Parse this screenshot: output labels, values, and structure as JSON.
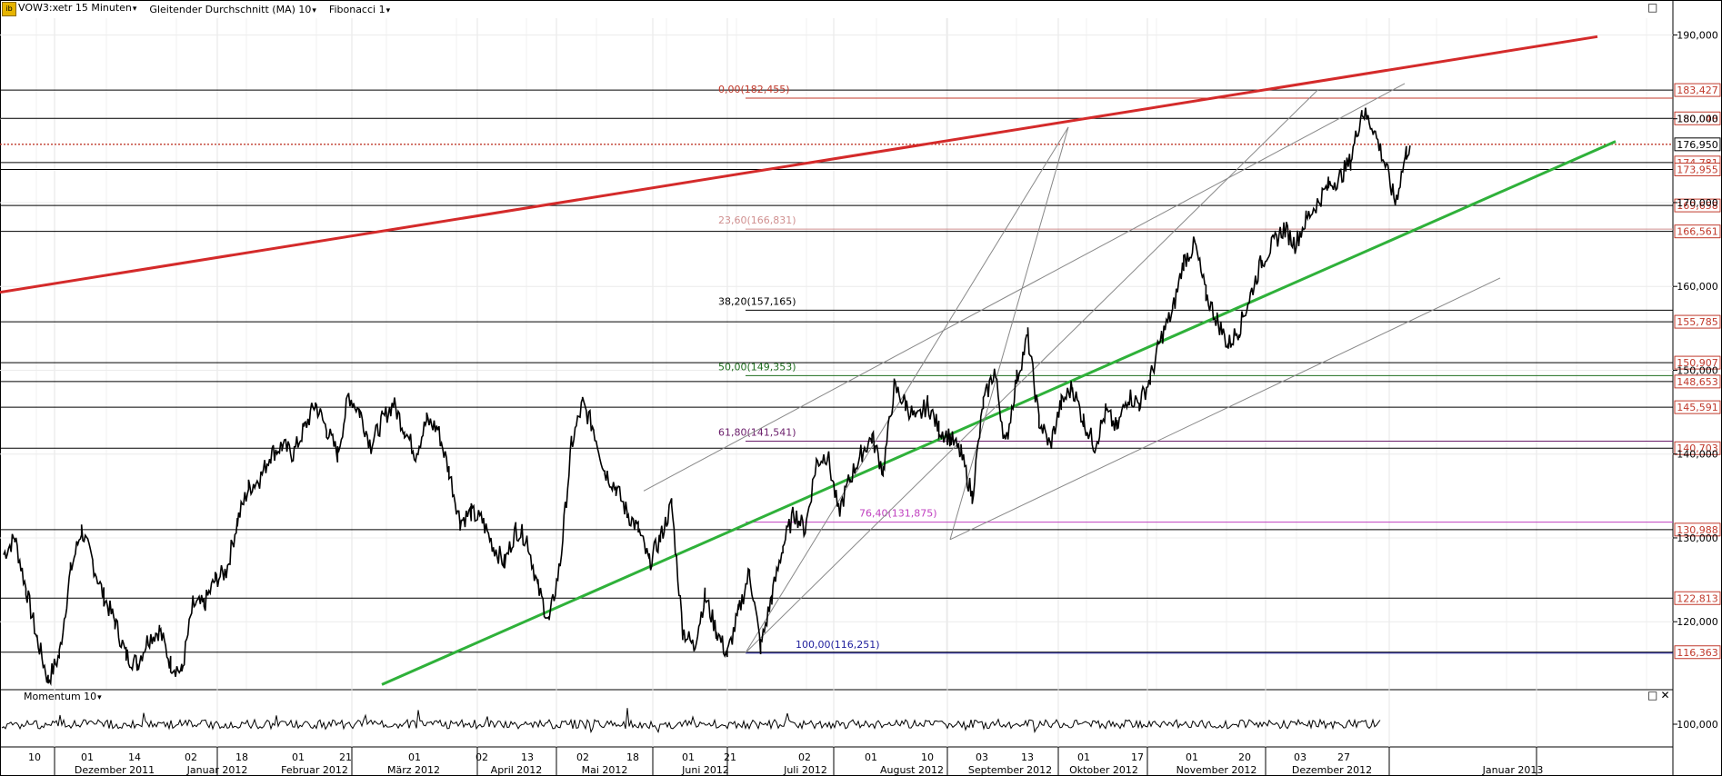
{
  "toolbar": {
    "symbol": "VOW3:xetr 15 Minuten",
    "indicator": "Gleitender Durchschnitt (MA) 10",
    "fibonacci": "Fibonacci 1"
  },
  "momentum_label": "Momentum 10",
  "colors": {
    "resistance": "#d42a2a",
    "support": "#2fb13a",
    "price": "#000000",
    "price_label_text": "#c0392b",
    "fib_0": "#c0392b",
    "fib_236": "#d09090",
    "fib_382": "#000000",
    "fib_50": "#1e6e1e",
    "fib_618": "#6b1e6b",
    "fib_764": "#c040c0",
    "fib_100": "#1e1e9c"
  },
  "chart_data": {
    "type": "line",
    "y_axis": {
      "ylim": [
        112,
        192
      ],
      "ticks": [
        "190,000",
        "180,000",
        "170,000",
        "160,000",
        "150,000",
        "140,000",
        "130,000",
        "120,000"
      ]
    },
    "momentum_axis": {
      "ticks": [
        "100,000"
      ]
    },
    "current_price": "176,950",
    "price_levels": [
      "183,427",
      "180,048",
      "174,781",
      "173,955",
      "169,658",
      "166,561",
      "155,785",
      "150,907",
      "148,653",
      "145,591",
      "140,703",
      "130,988",
      "122,813",
      "116,363"
    ],
    "fibonacci": [
      {
        "label": "0,00(182,455)",
        "value": 182.455
      },
      {
        "label": "23,60(166,831)",
        "value": 166.831
      },
      {
        "label": "38,20(157,165)",
        "value": 157.165
      },
      {
        "label": "50,00(149,353)",
        "value": 149.353
      },
      {
        "label": "61,80(141,541)",
        "value": 141.541
      },
      {
        "label": "76,40(131,875)",
        "value": 131.875
      },
      {
        "label": "100,00(116,251)",
        "value": 116.251
      }
    ],
    "x_days": [
      "10",
      "01",
      "14",
      "02",
      "18",
      "01",
      "21",
      "01",
      "02",
      "13",
      "02",
      "18",
      "01",
      "21",
      "02",
      "01",
      "10",
      "03",
      "13",
      "01",
      "17",
      "01",
      "20",
      "03",
      "27"
    ],
    "x_months": [
      "Dezember 2011",
      "Januar 2012",
      "Februar 2012",
      "März 2012",
      "April 2012",
      "Mai 2012",
      "Juni 2012",
      "Juli 2012",
      "August 2012",
      "September 2012",
      "Oktober 2012",
      "November 2012",
      "Dezember 2012",
      "Januar 2013"
    ],
    "series": [
      {
        "values": [
          [
            0,
            128
          ],
          [
            3,
            130
          ],
          [
            6,
            124
          ],
          [
            9,
            118
          ],
          [
            12,
            113
          ],
          [
            15,
            116
          ],
          [
            18,
            126
          ],
          [
            21,
            131
          ],
          [
            24,
            127
          ],
          [
            27,
            123
          ],
          [
            30,
            120
          ],
          [
            33,
            116
          ],
          [
            36,
            115
          ],
          [
            39,
            118
          ],
          [
            42,
            119
          ],
          [
            45,
            115
          ],
          [
            48,
            114
          ],
          [
            51,
            122
          ],
          [
            54,
            122
          ],
          [
            57,
            125
          ],
          [
            60,
            126
          ],
          [
            63,
            132
          ],
          [
            66,
            136
          ],
          [
            69,
            137
          ],
          [
            72,
            140
          ],
          [
            75,
            141
          ],
          [
            78,
            140
          ],
          [
            81,
            143
          ],
          [
            84,
            146
          ],
          [
            87,
            143
          ],
          [
            90,
            140
          ],
          [
            93,
            147
          ],
          [
            96,
            145
          ],
          [
            99,
            141
          ],
          [
            102,
            144
          ],
          [
            105,
            146
          ],
          [
            108,
            143
          ],
          [
            111,
            140
          ],
          [
            114,
            144
          ],
          [
            117,
            143
          ],
          [
            120,
            138
          ],
          [
            123,
            132
          ],
          [
            126,
            133
          ],
          [
            129,
            132
          ],
          [
            132,
            129
          ],
          [
            135,
            127
          ],
          [
            138,
            131
          ],
          [
            141,
            130
          ],
          [
            144,
            124
          ],
          [
            147,
            120
          ],
          [
            150,
            127
          ],
          [
            153,
            141
          ],
          [
            156,
            146
          ],
          [
            159,
            143
          ],
          [
            162,
            138
          ],
          [
            165,
            136
          ],
          [
            168,
            133
          ],
          [
            171,
            131
          ],
          [
            174,
            127
          ],
          [
            177,
            130
          ],
          [
            180,
            134
          ],
          [
            183,
            119
          ],
          [
            186,
            117
          ],
          [
            189,
            123
          ],
          [
            192,
            119
          ],
          [
            195,
            116
          ],
          [
            198,
            121
          ],
          [
            201,
            126
          ],
          [
            204,
            117
          ],
          [
            207,
            123
          ],
          [
            210,
            129
          ],
          [
            213,
            133
          ],
          [
            216,
            131
          ],
          [
            219,
            139
          ],
          [
            222,
            140
          ],
          [
            225,
            133
          ],
          [
            228,
            137
          ],
          [
            231,
            140
          ],
          [
            234,
            142
          ],
          [
            237,
            138
          ],
          [
            240,
            148
          ],
          [
            243,
            146
          ],
          [
            246,
            144
          ],
          [
            249,
            146
          ],
          [
            252,
            143
          ],
          [
            255,
            142
          ],
          [
            258,
            140
          ],
          [
            261,
            135
          ],
          [
            264,
            146
          ],
          [
            267,
            150
          ],
          [
            270,
            141
          ],
          [
            273,
            149
          ],
          [
            276,
            154
          ],
          [
            279,
            144
          ],
          [
            282,
            141
          ],
          [
            285,
            146
          ],
          [
            288,
            148
          ],
          [
            291,
            144
          ],
          [
            294,
            141
          ],
          [
            297,
            145
          ],
          [
            300,
            143
          ],
          [
            303,
            147
          ],
          [
            306,
            146
          ],
          [
            309,
            149
          ],
          [
            312,
            154
          ],
          [
            315,
            157
          ],
          [
            318,
            163
          ],
          [
            321,
            165
          ],
          [
            324,
            159
          ],
          [
            327,
            156
          ],
          [
            330,
            153
          ],
          [
            333,
            155
          ],
          [
            336,
            159
          ],
          [
            339,
            163
          ],
          [
            342,
            165
          ],
          [
            345,
            167
          ],
          [
            348,
            165
          ],
          [
            351,
            168
          ],
          [
            354,
            170
          ],
          [
            357,
            172
          ],
          [
            360,
            173
          ],
          [
            363,
            175
          ],
          [
            366,
            181
          ],
          [
            369,
            179
          ],
          [
            372,
            175
          ],
          [
            375,
            170
          ],
          [
            378,
            176
          ],
          [
            379,
            177
          ]
        ]
      }
    ]
  }
}
